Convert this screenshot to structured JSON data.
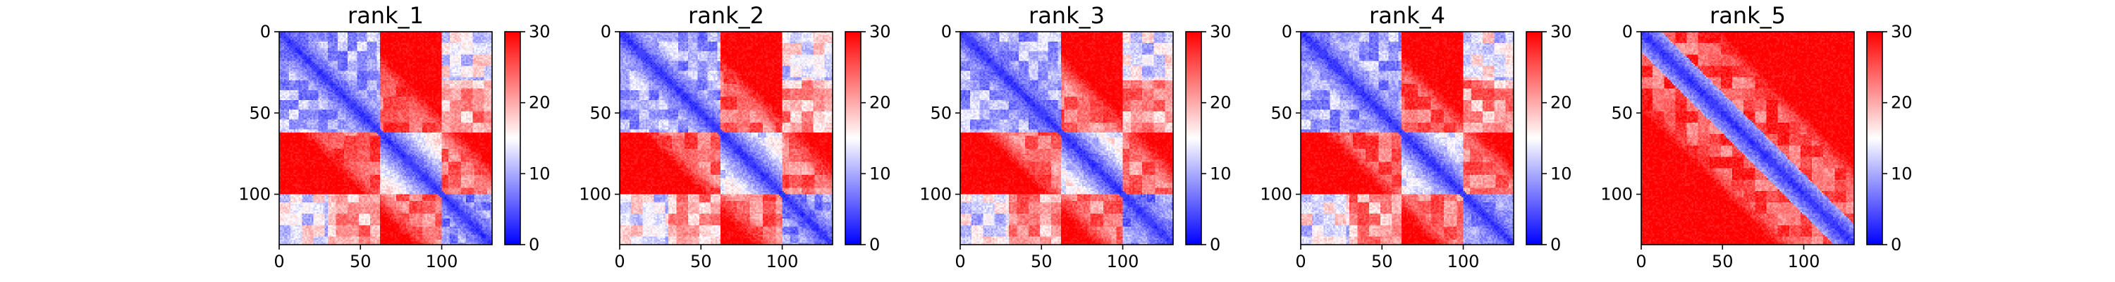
{
  "chart_data": [
    {
      "type": "heatmap",
      "title": "rank_1",
      "size": 131,
      "x_ticks": [
        0,
        50,
        100
      ],
      "y_ticks": [
        0,
        50,
        100
      ],
      "xlim": [
        0,
        131
      ],
      "ylim": [
        131,
        0
      ],
      "colorbar": {
        "min": 0,
        "max": 30,
        "ticks": [
          0,
          10,
          20,
          30
        ]
      },
      "colormap": [
        "#0000ff",
        "#ffffff",
        "#ff0000"
      ]
    },
    {
      "type": "heatmap",
      "title": "rank_2",
      "size": 131,
      "x_ticks": [
        0,
        50,
        100
      ],
      "y_ticks": [
        0,
        50,
        100
      ],
      "xlim": [
        0,
        131
      ],
      "ylim": [
        131,
        0
      ],
      "colorbar": {
        "min": 0,
        "max": 30,
        "ticks": [
          0,
          10,
          20,
          30
        ]
      },
      "colormap": [
        "#0000ff",
        "#ffffff",
        "#ff0000"
      ]
    },
    {
      "type": "heatmap",
      "title": "rank_3",
      "size": 131,
      "x_ticks": [
        0,
        50,
        100
      ],
      "y_ticks": [
        0,
        50,
        100
      ],
      "xlim": [
        0,
        131
      ],
      "ylim": [
        131,
        0
      ],
      "colorbar": {
        "min": 0,
        "max": 30,
        "ticks": [
          0,
          10,
          20,
          30
        ]
      },
      "colormap": [
        "#0000ff",
        "#ffffff",
        "#ff0000"
      ]
    },
    {
      "type": "heatmap",
      "title": "rank_4",
      "size": 131,
      "x_ticks": [
        0,
        50,
        100
      ],
      "y_ticks": [
        0,
        50,
        100
      ],
      "xlim": [
        0,
        131
      ],
      "ylim": [
        131,
        0
      ],
      "colorbar": {
        "min": 0,
        "max": 30,
        "ticks": [
          0,
          10,
          20,
          30
        ]
      },
      "colormap": [
        "#0000ff",
        "#ffffff",
        "#ff0000"
      ]
    },
    {
      "type": "heatmap",
      "title": "rank_5",
      "size": 131,
      "x_ticks": [
        0,
        50,
        100
      ],
      "y_ticks": [
        0,
        50,
        100
      ],
      "xlim": [
        0,
        131
      ],
      "ylim": [
        131,
        0
      ],
      "colorbar": {
        "min": 0,
        "max": 30,
        "ticks": [
          0,
          10,
          20,
          30
        ]
      },
      "colormap": [
        "#0000ff",
        "#ffffff",
        "#ff0000"
      ]
    }
  ]
}
